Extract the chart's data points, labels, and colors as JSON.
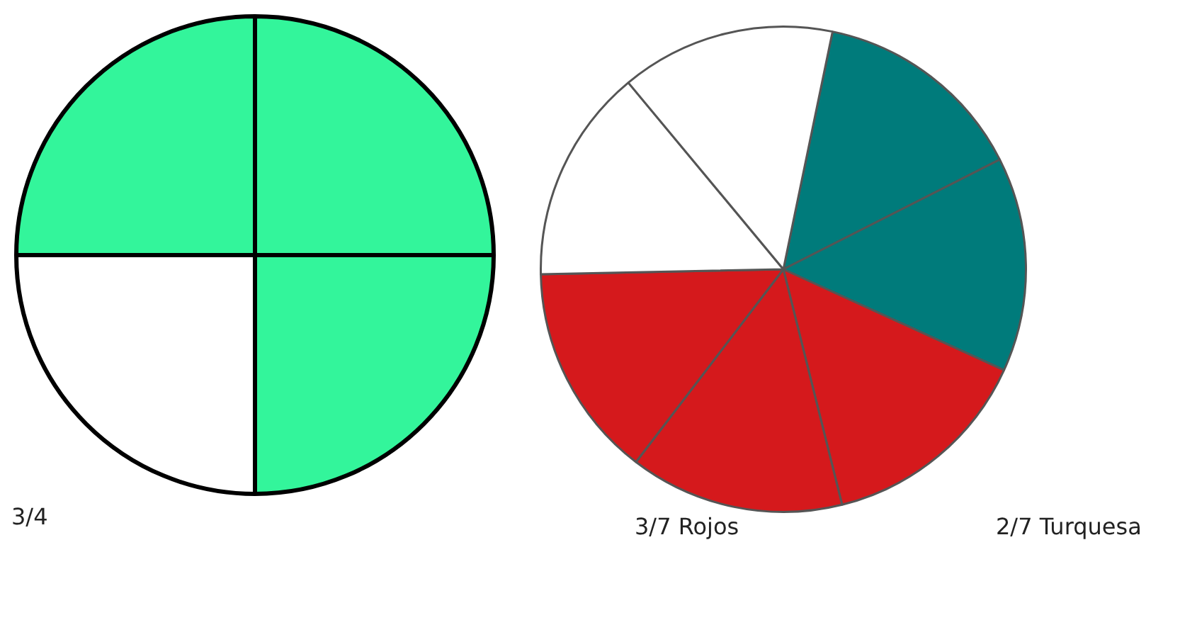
{
  "chart_data": [
    {
      "type": "pie",
      "categories": [
        null,
        null,
        null,
        null
      ],
      "values": [
        25,
        25,
        25,
        25
      ],
      "colors": [
        "#33f59b",
        "#33f59b",
        "#ffffff",
        "#33f59b"
      ],
      "annotations": [
        "3/4"
      ]
    },
    {
      "type": "pie",
      "categories": [
        null,
        null,
        null,
        null,
        null,
        null,
        null
      ],
      "values": [
        14.29,
        14.29,
        14.29,
        14.29,
        14.29,
        14.29,
        14.29
      ],
      "colors": [
        "#007b7b",
        "#007b7b",
        "#d5191c",
        "#d5191c",
        "#d5191c",
        "#ffffff",
        "#ffffff"
      ],
      "annotations": [
        "3/7 Rojos",
        "2/7 Turquesa"
      ]
    }
  ]
}
